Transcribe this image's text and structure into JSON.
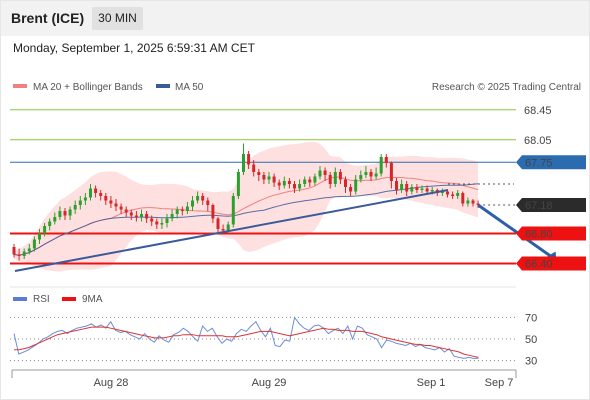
{
  "header": {
    "instrument": "Brent (ICE)",
    "timeframe": "30 MIN",
    "datetime": "Monday, September 1, 2025 6:59:31 AM CET"
  },
  "legend": {
    "ma20": "MA 20 + Bollinger Bands",
    "ma50": "MA 50",
    "rsi": "RSI",
    "rsi_ma": "9MA",
    "copyright": "Research © 2025 Trading Central"
  },
  "colors": {
    "up": "#2ca02c",
    "down": "#d62728",
    "resistance": "#8cc63f",
    "support": "#ee1111",
    "pivot": "#2b6cb0",
    "ma20": "#f08080",
    "ma50": "#3a5a9a",
    "bands": "#ffd6d6",
    "price_tag": "#2b2b2b",
    "arrow": "#2b5fa8"
  },
  "chart_data": [
    {
      "type": "candlestick",
      "x_ticks": [
        "Aug 28",
        "Aug 29",
        "Sep 1",
        "Sep 7"
      ],
      "ylim": [
        66.3,
        68.5
      ],
      "levels": [
        {
          "value": 68.45,
          "label": "68.45",
          "kind": "resistance"
        },
        {
          "value": 68.05,
          "label": "68.05",
          "kind": "resistance"
        },
        {
          "value": 67.75,
          "label": "67.75",
          "kind": "pivot"
        },
        {
          "value": 66.8,
          "label": "66.80",
          "kind": "support"
        },
        {
          "value": 66.4,
          "label": "66.40",
          "kind": "support"
        }
      ],
      "last_price": {
        "value": 67.18,
        "label": "67.18"
      },
      "series": [
        {
          "name": "MA 20 + Bollinger Bands"
        },
        {
          "name": "MA 50"
        }
      ],
      "candles": [
        [
          66.62,
          66.52,
          66.66,
          66.48
        ],
        [
          66.52,
          66.5,
          66.6,
          66.44
        ],
        [
          66.5,
          66.56,
          66.6,
          66.46
        ],
        [
          66.56,
          66.6,
          66.66,
          66.52
        ],
        [
          66.6,
          66.72,
          66.76,
          66.56
        ],
        [
          66.72,
          66.8,
          66.86,
          66.66
        ],
        [
          66.8,
          66.9,
          66.94,
          66.76
        ],
        [
          66.9,
          66.96,
          67.0,
          66.84
        ],
        [
          66.96,
          67.02,
          67.08,
          66.92
        ],
        [
          67.02,
          67.1,
          67.16,
          66.98
        ],
        [
          67.1,
          67.04,
          67.14,
          66.98
        ],
        [
          67.04,
          67.12,
          67.16,
          66.98
        ],
        [
          67.12,
          67.18,
          67.24,
          67.06
        ],
        [
          67.18,
          67.24,
          67.3,
          67.12
        ],
        [
          67.24,
          67.28,
          67.34,
          67.18
        ],
        [
          67.28,
          67.4,
          67.46,
          67.24
        ],
        [
          67.4,
          67.34,
          67.44,
          67.28
        ],
        [
          67.34,
          67.3,
          67.38,
          67.24
        ],
        [
          67.3,
          67.24,
          67.34,
          67.18
        ],
        [
          67.24,
          67.2,
          67.3,
          67.14
        ],
        [
          67.2,
          67.16,
          67.26,
          67.1
        ],
        [
          67.16,
          67.12,
          67.2,
          67.06
        ],
        [
          67.12,
          67.08,
          67.16,
          67.02
        ],
        [
          67.08,
          67.04,
          67.12,
          66.98
        ],
        [
          67.04,
          67.02,
          67.1,
          66.96
        ],
        [
          67.02,
          67.06,
          67.12,
          66.96
        ],
        [
          67.06,
          67.0,
          67.1,
          66.94
        ],
        [
          67.0,
          66.96,
          67.04,
          66.9
        ],
        [
          66.96,
          66.92,
          67.0,
          66.86
        ],
        [
          66.92,
          66.94,
          67.0,
          66.86
        ],
        [
          66.94,
          67.0,
          67.06,
          66.88
        ],
        [
          67.0,
          67.06,
          67.12,
          66.96
        ],
        [
          67.06,
          67.12,
          67.16,
          67.0
        ],
        [
          67.12,
          67.1,
          67.16,
          67.04
        ],
        [
          67.1,
          67.16,
          67.22,
          67.06
        ],
        [
          67.16,
          67.24,
          67.3,
          67.1
        ],
        [
          67.24,
          67.3,
          67.36,
          67.2
        ],
        [
          67.3,
          67.24,
          67.34,
          67.18
        ],
        [
          67.24,
          67.18,
          67.28,
          67.1
        ],
        [
          67.18,
          67.0,
          67.2,
          66.94
        ],
        [
          67.0,
          66.86,
          67.02,
          66.8
        ],
        [
          66.86,
          66.84,
          66.92,
          66.8
        ],
        [
          66.84,
          66.92,
          66.96,
          66.8
        ],
        [
          66.92,
          67.3,
          67.34,
          66.88
        ],
        [
          67.3,
          67.62,
          67.66,
          67.26
        ],
        [
          67.62,
          67.86,
          68.0,
          67.58
        ],
        [
          67.86,
          67.72,
          67.9,
          67.66
        ],
        [
          67.72,
          67.62,
          67.78,
          67.56
        ],
        [
          67.62,
          67.58,
          67.66,
          67.5
        ],
        [
          67.58,
          67.52,
          67.62,
          67.46
        ],
        [
          67.52,
          67.56,
          67.62,
          67.46
        ],
        [
          67.56,
          67.48,
          67.6,
          67.42
        ],
        [
          67.48,
          67.44,
          67.52,
          67.38
        ],
        [
          67.44,
          67.5,
          67.56,
          67.4
        ],
        [
          67.5,
          67.46,
          67.54,
          67.4
        ],
        [
          67.46,
          67.4,
          67.5,
          67.34
        ],
        [
          67.4,
          67.46,
          67.52,
          67.36
        ],
        [
          67.46,
          67.52,
          67.56,
          67.42
        ],
        [
          67.52,
          67.48,
          67.56,
          67.42
        ],
        [
          67.48,
          67.56,
          67.6,
          67.44
        ],
        [
          67.56,
          67.64,
          67.7,
          67.52
        ],
        [
          67.64,
          67.58,
          67.68,
          67.5
        ],
        [
          67.58,
          67.46,
          67.62,
          67.4
        ],
        [
          67.46,
          67.62,
          67.68,
          67.42
        ],
        [
          67.62,
          67.52,
          67.66,
          67.46
        ],
        [
          67.52,
          67.42,
          67.56,
          67.34
        ],
        [
          67.42,
          67.36,
          67.46,
          67.3
        ],
        [
          67.36,
          67.52,
          67.58,
          67.32
        ],
        [
          67.52,
          67.58,
          67.64,
          67.48
        ],
        [
          67.58,
          67.62,
          67.7,
          67.54
        ],
        [
          67.62,
          67.56,
          67.66,
          67.5
        ],
        [
          67.56,
          67.6,
          67.68,
          67.52
        ],
        [
          67.6,
          67.82,
          67.86,
          67.56
        ],
        [
          67.82,
          67.74,
          67.86,
          67.68
        ],
        [
          67.74,
          67.5,
          67.76,
          67.4
        ],
        [
          67.5,
          67.38,
          67.54,
          67.32
        ],
        [
          67.38,
          67.46,
          67.52,
          67.34
        ],
        [
          67.46,
          67.36,
          67.5,
          67.3
        ],
        [
          67.36,
          67.42,
          67.46,
          67.32
        ],
        [
          67.42,
          67.38,
          67.46,
          67.34
        ],
        [
          67.38,
          67.4,
          67.44,
          67.34
        ],
        [
          67.4,
          67.36,
          67.44,
          67.32
        ],
        [
          67.36,
          67.38,
          67.42,
          67.32
        ],
        [
          67.38,
          67.34,
          67.4,
          67.3
        ],
        [
          67.34,
          67.36,
          67.4,
          67.3
        ],
        [
          67.36,
          67.32,
          67.38,
          67.28
        ],
        [
          67.32,
          67.3,
          67.36,
          67.26
        ],
        [
          67.3,
          67.34,
          67.38,
          67.26
        ],
        [
          67.34,
          67.2,
          67.36,
          67.16
        ],
        [
          67.2,
          67.24,
          67.28,
          67.16
        ],
        [
          67.24,
          67.2,
          67.26,
          67.16
        ],
        [
          67.2,
          67.18,
          67.24,
          67.14
        ]
      ],
      "projection": {
        "from_index": 91,
        "from_value": 67.18,
        "to_index": 106,
        "to_value": 66.4
      }
    },
    {
      "type": "line",
      "title": "RSI",
      "ylim": [
        25,
        75
      ],
      "y_ticks": [
        70,
        50,
        30
      ],
      "series": [
        {
          "name": "RSI",
          "values": [
            55,
            36,
            38,
            40,
            43,
            46,
            50,
            52,
            55,
            57,
            58,
            55,
            58,
            60,
            61,
            62,
            64,
            61,
            63,
            60,
            66,
            58,
            56,
            57,
            54,
            52,
            50,
            55,
            50,
            47,
            53,
            49,
            47,
            54,
            56,
            60,
            57,
            52,
            48,
            62,
            57,
            60,
            52,
            46,
            50,
            48,
            55,
            59,
            57,
            62,
            66,
            58,
            52,
            60,
            44,
            43,
            49,
            48,
            70,
            64,
            60,
            58,
            62,
            63,
            60,
            55,
            58,
            60,
            55,
            62,
            50,
            62,
            60,
            54,
            52,
            50,
            42,
            49,
            48,
            46,
            45,
            44,
            46,
            43,
            45,
            42,
            41,
            40,
            42,
            38,
            41,
            34,
            33,
            32,
            33,
            32,
            32
          ]
        },
        {
          "name": "9MA",
          "values": [
            40,
            40,
            41,
            42,
            44,
            46,
            48,
            50,
            52,
            54,
            55,
            56,
            57,
            58,
            59,
            60,
            61,
            61,
            61,
            61,
            60,
            59,
            58,
            57,
            56,
            55,
            54,
            53,
            52,
            51,
            51,
            51,
            52,
            53,
            53,
            54,
            54,
            54,
            53,
            53,
            53,
            53,
            53,
            53,
            52,
            52,
            52,
            53,
            54,
            55,
            56,
            57,
            57,
            57,
            56,
            55,
            54,
            53,
            54,
            55,
            56,
            57,
            58,
            59,
            60,
            59,
            59,
            58,
            58,
            58,
            57,
            57,
            57,
            56,
            55,
            54,
            52,
            51,
            50,
            49,
            48,
            47,
            46,
            45,
            45,
            44,
            44,
            43,
            42,
            41,
            40,
            39,
            38,
            36,
            35,
            34,
            33
          ]
        }
      ]
    }
  ]
}
